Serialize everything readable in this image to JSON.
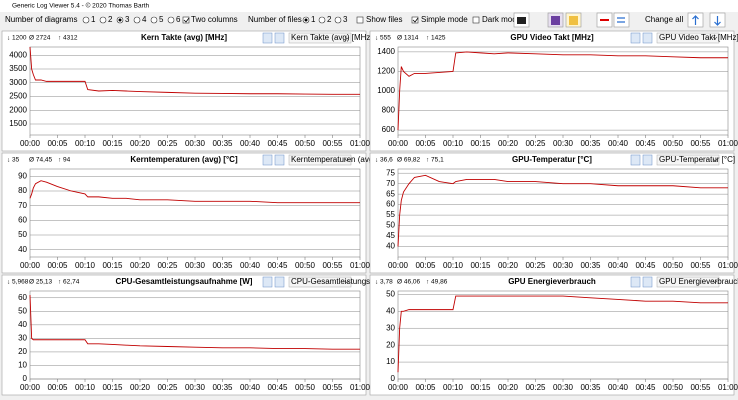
{
  "window": {
    "title": "Generic Log Viewer 5.4 - © 2020 Thomas Barth"
  },
  "toolbar": {
    "diagrams_label": "Number of diagrams",
    "diagram_options": [
      "1",
      "2",
      "3",
      "4",
      "5",
      "6"
    ],
    "two_columns": "Two columns",
    "files_label": "Number of files",
    "file_options": [
      "1",
      "2",
      "3"
    ],
    "show_files": "Show files",
    "simple_mode": "Simple mode",
    "dark_mode": "Dark mod",
    "change_all": "Change all"
  },
  "chart_data": [
    {
      "type": "line",
      "title": "Kern Takte (avg) [MHz]",
      "stats": {
        "min": "↓ 1200",
        "avg": "Ø 2724",
        "max": "↑ 4312"
      },
      "dropdown": "Kern Takte (avg) [MHz]",
      "color": "#c00000",
      "x": [
        0,
        0.3,
        0.6,
        1,
        2,
        3,
        5,
        7.5,
        10,
        10.5,
        12.5,
        15,
        17.5,
        20,
        25,
        30,
        35,
        40,
        45,
        50,
        55,
        60
      ],
      "values": [
        4300,
        3500,
        3300,
        3100,
        3100,
        3050,
        3050,
        3050,
        3050,
        2750,
        2700,
        2720,
        2700,
        2680,
        2650,
        2620,
        2610,
        2600,
        2600,
        2590,
        2580,
        2580
      ],
      "xlim": [
        0,
        60
      ],
      "ylim": [
        1100,
        4300
      ],
      "yticks": [
        1500,
        2000,
        2500,
        3000,
        3500,
        4000
      ],
      "xticks": [
        {
          "value": 0,
          "label": "00:00"
        },
        {
          "value": 5,
          "label": "00:05"
        },
        {
          "value": 10,
          "label": "00:10"
        },
        {
          "value": 15,
          "label": "00:15"
        },
        {
          "value": 20,
          "label": "00:20"
        },
        {
          "value": 25,
          "label": "00:25"
        },
        {
          "value": 30,
          "label": "00:30"
        },
        {
          "value": 35,
          "label": "00:35"
        },
        {
          "value": 40,
          "label": "00:40"
        },
        {
          "value": 45,
          "label": "00:45"
        },
        {
          "value": 50,
          "label": "00:50"
        },
        {
          "value": 55,
          "label": "00:55"
        },
        {
          "value": 60,
          "label": "01:00"
        }
      ]
    },
    {
      "type": "line",
      "title": "GPU Video Takt [MHz]",
      "stats": {
        "min": "↓ 555",
        "avg": "Ø 1314",
        "max": "↑ 1425"
      },
      "dropdown": "GPU Video Takt [MHz]",
      "color": "#c00000",
      "x": [
        0,
        0.3,
        0.6,
        1,
        2,
        3,
        5,
        7.5,
        10,
        10.5,
        12.5,
        15,
        17.5,
        20,
        25,
        30,
        35,
        40,
        45,
        50,
        55,
        60
      ],
      "values": [
        600,
        1000,
        1250,
        1200,
        1150,
        1180,
        1180,
        1190,
        1200,
        1390,
        1400,
        1390,
        1380,
        1390,
        1380,
        1370,
        1370,
        1360,
        1360,
        1350,
        1340,
        1340
      ],
      "xlim": [
        0,
        60
      ],
      "ylim": [
        550,
        1450
      ],
      "yticks": [
        600,
        800,
        1000,
        1200,
        1400
      ],
      "xticks": [
        {
          "value": 0,
          "label": "00:00"
        },
        {
          "value": 5,
          "label": "00:05"
        },
        {
          "value": 10,
          "label": "00:10"
        },
        {
          "value": 15,
          "label": "00:15"
        },
        {
          "value": 20,
          "label": "00:20"
        },
        {
          "value": 25,
          "label": "00:25"
        },
        {
          "value": 30,
          "label": "00:30"
        },
        {
          "value": 35,
          "label": "00:35"
        },
        {
          "value": 40,
          "label": "00:40"
        },
        {
          "value": 45,
          "label": "00:45"
        },
        {
          "value": 50,
          "label": "00:50"
        },
        {
          "value": 55,
          "label": "00:55"
        },
        {
          "value": 60,
          "label": "01:00"
        }
      ]
    },
    {
      "type": "line",
      "title": "Kerntemperaturen (avg) [°C]",
      "stats": {
        "min": "↓ 35",
        "avg": "Ø 74,45",
        "max": "↑ 94"
      },
      "dropdown": "Kerntemperaturen (avg) [",
      "color": "#c00000",
      "x": [
        0,
        0.3,
        0.6,
        1,
        2,
        3,
        5,
        7.5,
        10,
        10.5,
        12.5,
        15,
        17.5,
        20,
        25,
        30,
        35,
        40,
        45,
        50,
        55,
        60
      ],
      "values": [
        75,
        78,
        82,
        85,
        87,
        86,
        83,
        80,
        78,
        76,
        76,
        75,
        75,
        74,
        74,
        73,
        73,
        73,
        72,
        72,
        72,
        72
      ],
      "xlim": [
        0,
        60
      ],
      "ylim": [
        35,
        95
      ],
      "yticks": [
        40,
        50,
        60,
        70,
        80,
        90
      ],
      "xticks": [
        {
          "value": 0,
          "label": "00:00"
        },
        {
          "value": 5,
          "label": "00:05"
        },
        {
          "value": 10,
          "label": "00:10"
        },
        {
          "value": 15,
          "label": "00:15"
        },
        {
          "value": 20,
          "label": "00:20"
        },
        {
          "value": 25,
          "label": "00:25"
        },
        {
          "value": 30,
          "label": "00:30"
        },
        {
          "value": 35,
          "label": "00:35"
        },
        {
          "value": 40,
          "label": "00:40"
        },
        {
          "value": 45,
          "label": "00:45"
        },
        {
          "value": 50,
          "label": "00:50"
        },
        {
          "value": 55,
          "label": "00:55"
        },
        {
          "value": 60,
          "label": "01:00"
        }
      ]
    },
    {
      "type": "line",
      "title": "GPU-Temperatur [°C]",
      "stats": {
        "min": "↓ 36,6",
        "avg": "Ø 69,82",
        "max": "↑ 75,1"
      },
      "dropdown": "GPU-Temperatur [°C]",
      "color": "#c00000",
      "x": [
        0,
        0.3,
        0.6,
        1,
        2,
        3,
        5,
        7.5,
        10,
        10.5,
        12.5,
        15,
        17.5,
        20,
        25,
        30,
        35,
        40,
        45,
        50,
        55,
        60
      ],
      "values": [
        40,
        55,
        62,
        66,
        70,
        73,
        74,
        71,
        70,
        71,
        72,
        72,
        72,
        71,
        71,
        70,
        70,
        69,
        69,
        69,
        68,
        68
      ],
      "xlim": [
        0,
        60
      ],
      "ylim": [
        35,
        77
      ],
      "yticks": [
        40,
        45,
        50,
        55,
        60,
        65,
        70,
        75
      ],
      "xticks": [
        {
          "value": 0,
          "label": "00:00"
        },
        {
          "value": 5,
          "label": "00:05"
        },
        {
          "value": 10,
          "label": "00:10"
        },
        {
          "value": 15,
          "label": "00:15"
        },
        {
          "value": 20,
          "label": "00:20"
        },
        {
          "value": 25,
          "label": "00:25"
        },
        {
          "value": 30,
          "label": "00:30"
        },
        {
          "value": 35,
          "label": "00:35"
        },
        {
          "value": 40,
          "label": "00:40"
        },
        {
          "value": 45,
          "label": "00:45"
        },
        {
          "value": 50,
          "label": "00:50"
        },
        {
          "value": 55,
          "label": "00:55"
        },
        {
          "value": 60,
          "label": "01:00"
        }
      ]
    },
    {
      "type": "line",
      "title": "CPU-Gesamtleistungsaufnahme [W]",
      "stats": {
        "min": "↓ 5,968",
        "avg": "Ø 25,13",
        "max": "↑ 62,74"
      },
      "dropdown": "CPU-Gesamtleistungsaufn",
      "color": "#c00000",
      "x": [
        0,
        0.3,
        0.6,
        1,
        2,
        3,
        5,
        7.5,
        10,
        10.5,
        12.5,
        15,
        17.5,
        20,
        25,
        30,
        35,
        40,
        45,
        50,
        55,
        60
      ],
      "values": [
        62,
        30,
        29,
        29,
        29,
        29,
        29,
        29,
        29,
        26,
        26,
        25.5,
        25,
        24.5,
        24,
        23.5,
        23,
        23,
        22.5,
        22.5,
        22,
        22
      ],
      "xlim": [
        0,
        60
      ],
      "ylim": [
        0,
        65
      ],
      "yticks": [
        0,
        10,
        20,
        30,
        40,
        50,
        60
      ],
      "xticks": [
        {
          "value": 0,
          "label": "00:00"
        },
        {
          "value": 5,
          "label": "00:05"
        },
        {
          "value": 10,
          "label": "00:10"
        },
        {
          "value": 15,
          "label": "00:15"
        },
        {
          "value": 20,
          "label": "00:20"
        },
        {
          "value": 25,
          "label": "00:25"
        },
        {
          "value": 30,
          "label": "00:30"
        },
        {
          "value": 35,
          "label": "00:35"
        },
        {
          "value": 40,
          "label": "00:40"
        },
        {
          "value": 45,
          "label": "00:45"
        },
        {
          "value": 50,
          "label": "00:50"
        },
        {
          "value": 55,
          "label": "00:55"
        },
        {
          "value": 60,
          "label": "01:00"
        }
      ]
    },
    {
      "type": "line",
      "title": "GPU Energieverbrauch",
      "stats": {
        "min": "↓ 3,78",
        "avg": "Ø 46,06",
        "max": "↑ 49,86"
      },
      "dropdown": "GPU Energieverbrauch [W",
      "color": "#c00000",
      "x": [
        0,
        0.3,
        0.6,
        1,
        2,
        3,
        5,
        7.5,
        10,
        10.5,
        12.5,
        15,
        17.5,
        20,
        25,
        30,
        35,
        40,
        45,
        50,
        55,
        60
      ],
      "values": [
        4,
        30,
        40,
        40,
        41,
        41,
        41,
        41,
        41,
        49,
        49,
        49,
        49,
        49,
        49,
        49,
        48,
        47,
        46,
        46,
        45,
        45
      ],
      "xlim": [
        0,
        60
      ],
      "ylim": [
        0,
        52
      ],
      "yticks": [
        0,
        10,
        20,
        30,
        40,
        50
      ],
      "xticks": [
        {
          "value": 0,
          "label": "00:00"
        },
        {
          "value": 5,
          "label": "00:05"
        },
        {
          "value": 10,
          "label": "00:10"
        },
        {
          "value": 15,
          "label": "00:15"
        },
        {
          "value": 20,
          "label": "00:20"
        },
        {
          "value": 25,
          "label": "00:25"
        },
        {
          "value": 30,
          "label": "00:30"
        },
        {
          "value": 35,
          "label": "00:35"
        },
        {
          "value": 40,
          "label": "00:40"
        },
        {
          "value": 45,
          "label": "00:45"
        },
        {
          "value": 50,
          "label": "00:50"
        },
        {
          "value": 55,
          "label": "00:55"
        },
        {
          "value": 60,
          "label": "01:00"
        }
      ]
    }
  ]
}
